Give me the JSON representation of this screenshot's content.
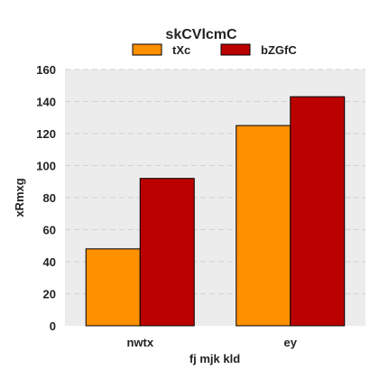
{
  "chart_data": {
    "type": "bar",
    "title": "skCVlcmC",
    "xlabel": "fj mjk kld",
    "ylabel": "xRmxg",
    "categories": [
      "nwtx",
      "ey"
    ],
    "series": [
      {
        "name": "tXc",
        "values": [
          48,
          125
        ],
        "color": "#ff9000"
      },
      {
        "name": "bZGfC",
        "values": [
          92,
          143
        ],
        "color": "#bb0000"
      }
    ],
    "ylim": [
      0,
      160
    ],
    "yticks": [
      0,
      20,
      40,
      60,
      80,
      100,
      120,
      140,
      160
    ],
    "grid": true,
    "legend": "top-center",
    "background": "#ececec"
  }
}
